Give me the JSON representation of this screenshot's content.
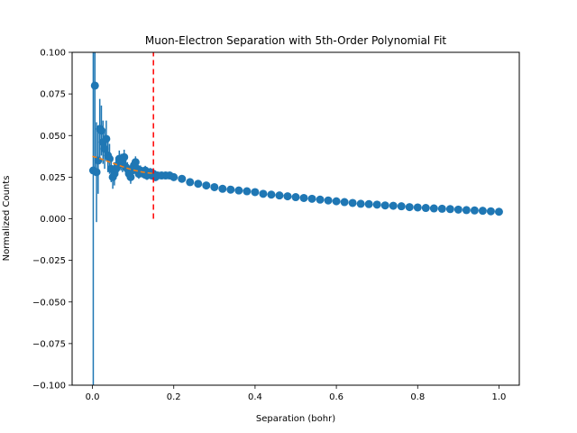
{
  "chart_data": {
    "type": "scatter",
    "title": "Muon-Electron Separation with 5th-Order Polynomial Fit",
    "xlabel": "Separation (bohr)",
    "ylabel": "Normalized Counts",
    "xlim": [
      -0.05,
      1.05
    ],
    "ylim": [
      -0.1,
      0.1
    ],
    "xticks": [
      0.0,
      0.2,
      0.4,
      0.6,
      0.8,
      1.0
    ],
    "xtick_labels": [
      "0.0",
      "0.2",
      "0.4",
      "0.6",
      "0.8",
      "1.0"
    ],
    "yticks": [
      -0.1,
      -0.075,
      -0.05,
      -0.025,
      0.0,
      0.025,
      0.05,
      0.075,
      0.1
    ],
    "ytick_labels": [
      "−0.100",
      "−0.075",
      "−0.050",
      "−0.025",
      "0.000",
      "0.025",
      "0.050",
      "0.075",
      "0.100"
    ],
    "grid": false,
    "legend": "none",
    "colors": {
      "data": "#1f77b4",
      "fit": "#ff7f0e",
      "cutoff": "#ff0000"
    },
    "cutoff_x": 0.15,
    "cutoff_y_range": [
      0.0,
      0.1
    ],
    "series": [
      {
        "type": "errorbar",
        "x": [
          0.002,
          0.006,
          0.01,
          0.014,
          0.018,
          0.022,
          0.026,
          0.03,
          0.034,
          0.038,
          0.042,
          0.046,
          0.05,
          0.054,
          0.058,
          0.062,
          0.066,
          0.07,
          0.074,
          0.078,
          0.082,
          0.086,
          0.09,
          0.094,
          0.098,
          0.102,
          0.106,
          0.11,
          0.114,
          0.118,
          0.122,
          0.126,
          0.13,
          0.134,
          0.138,
          0.142,
          0.146,
          0.15,
          0.155,
          0.16,
          0.17,
          0.18,
          0.19,
          0.2,
          0.22,
          0.24,
          0.26,
          0.28,
          0.3,
          0.32,
          0.34,
          0.36,
          0.38,
          0.4,
          0.42,
          0.44,
          0.46,
          0.48,
          0.5,
          0.52,
          0.54,
          0.56,
          0.58,
          0.6,
          0.62,
          0.64,
          0.66,
          0.68,
          0.7,
          0.72,
          0.74,
          0.76,
          0.78,
          0.8,
          0.82,
          0.84,
          0.86,
          0.88,
          0.9,
          0.92,
          0.94,
          0.96,
          0.98,
          1.0
        ],
        "y": [
          0.029,
          0.08,
          0.028,
          0.035,
          0.054,
          0.053,
          0.046,
          0.042,
          0.048,
          0.038,
          0.036,
          0.03,
          0.025,
          0.027,
          0.03,
          0.032,
          0.036,
          0.034,
          0.033,
          0.037,
          0.031,
          0.03,
          0.027,
          0.025,
          0.029,
          0.032,
          0.034,
          0.03,
          0.027,
          0.029,
          0.028,
          0.027,
          0.029,
          0.026,
          0.027,
          0.028,
          0.026,
          0.027,
          0.025,
          0.026,
          0.026,
          0.026,
          0.026,
          0.025,
          0.024,
          0.022,
          0.021,
          0.02,
          0.019,
          0.018,
          0.0175,
          0.017,
          0.0165,
          0.016,
          0.015,
          0.0145,
          0.014,
          0.0135,
          0.013,
          0.0125,
          0.012,
          0.0115,
          0.011,
          0.0105,
          0.01,
          0.0095,
          0.009,
          0.0088,
          0.0085,
          0.008,
          0.0078,
          0.0075,
          0.007,
          0.0068,
          0.0065,
          0.0062,
          0.006,
          0.0058,
          0.0055,
          0.0052,
          0.005,
          0.0048,
          0.0045,
          0.0042
        ],
        "yerr": [
          0.2,
          0.05,
          0.03,
          0.02,
          0.018,
          0.015,
          0.013,
          0.012,
          0.011,
          0.01,
          0.009,
          0.008,
          0.007,
          0.007,
          0.006,
          0.006,
          0.005,
          0.005,
          0.005,
          0.0045,
          0.0045,
          0.004,
          0.004,
          0.004,
          0.0035,
          0.0035,
          0.0035,
          0.003,
          0.003,
          0.003,
          0.003,
          0.0028,
          0.0028,
          0.0027,
          0.0026,
          0.0025,
          0.0025,
          0.0024,
          0.0023,
          0.0022,
          0.0021,
          0.002,
          0.002,
          0.0019,
          0.0018,
          0.0017,
          0.0016,
          0.0015,
          0.0015,
          0.0014,
          0.0014,
          0.0013,
          0.0013,
          0.0012,
          0.0012,
          0.0011,
          0.0011,
          0.0011,
          0.001,
          0.001,
          0.001,
          0.001,
          0.0009,
          0.0009,
          0.0009,
          0.0009,
          0.0008,
          0.0008,
          0.0008,
          0.0008,
          0.0008,
          0.0007,
          0.0007,
          0.0007,
          0.0007,
          0.0007,
          0.0007,
          0.0006,
          0.0006,
          0.0006,
          0.0006,
          0.0006,
          0.0006,
          0.0006
        ]
      },
      {
        "type": "line",
        "style": "dashed",
        "x": [
          0.0,
          0.015,
          0.03,
          0.045,
          0.06,
          0.075,
          0.09,
          0.105,
          0.12,
          0.135,
          0.15
        ],
        "y": [
          0.0375,
          0.0365,
          0.0352,
          0.0338,
          0.0325,
          0.0312,
          0.03,
          0.029,
          0.0282,
          0.0276,
          0.0272
        ]
      }
    ]
  }
}
